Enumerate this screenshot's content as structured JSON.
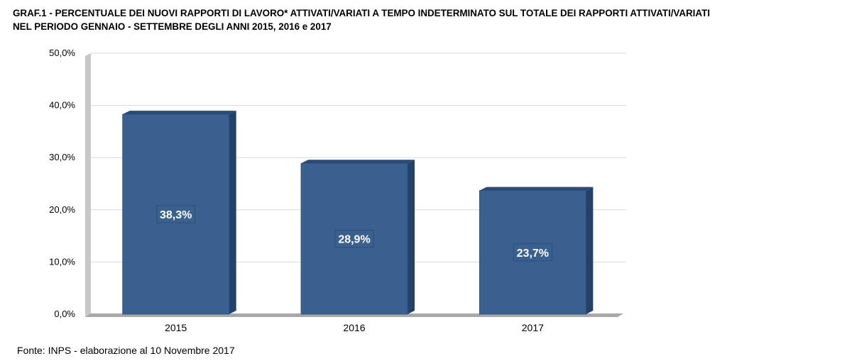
{
  "title": {
    "line1": "GRAF.1 - PERCENTUALE DEI NUOVI RAPPORTI DI LAVORO* ATTIVATI/VARIATI A TEMPO INDETERMINATO SUL TOTALE DEI RAPPORTI ATTIVATI/VARIATI",
    "line2": "NEL PERIODO GENNAIO - SETTEMBRE  DEGLI ANNI 2015, 2016 e 2017"
  },
  "source": "Fonte: INPS - elaborazione al 10 Novembre 2017",
  "chart_data": {
    "type": "bar",
    "categories": [
      "2015",
      "2016",
      "2017"
    ],
    "values": [
      38.3,
      28.9,
      23.7
    ],
    "value_labels": [
      "38,3%",
      "28,9%",
      "23,7%"
    ],
    "yticks": [
      0,
      10,
      20,
      30,
      40,
      50
    ],
    "ytick_labels": [
      "0,0%",
      "10,0%",
      "20,0%",
      "30,0%",
      "40,0%",
      "50,0%"
    ],
    "ylim": [
      0,
      50
    ],
    "grid": true,
    "style": "3d",
    "colors": {
      "bar_front": "#3A6090",
      "bar_side": "#24416A",
      "bar_top": "#2A4A78",
      "label_box": "#3A6090",
      "label_border": "#2B4E7A",
      "wall": "#C8C8C8",
      "floor": "#A8A8A8",
      "grid": "#D9D9D9"
    }
  }
}
